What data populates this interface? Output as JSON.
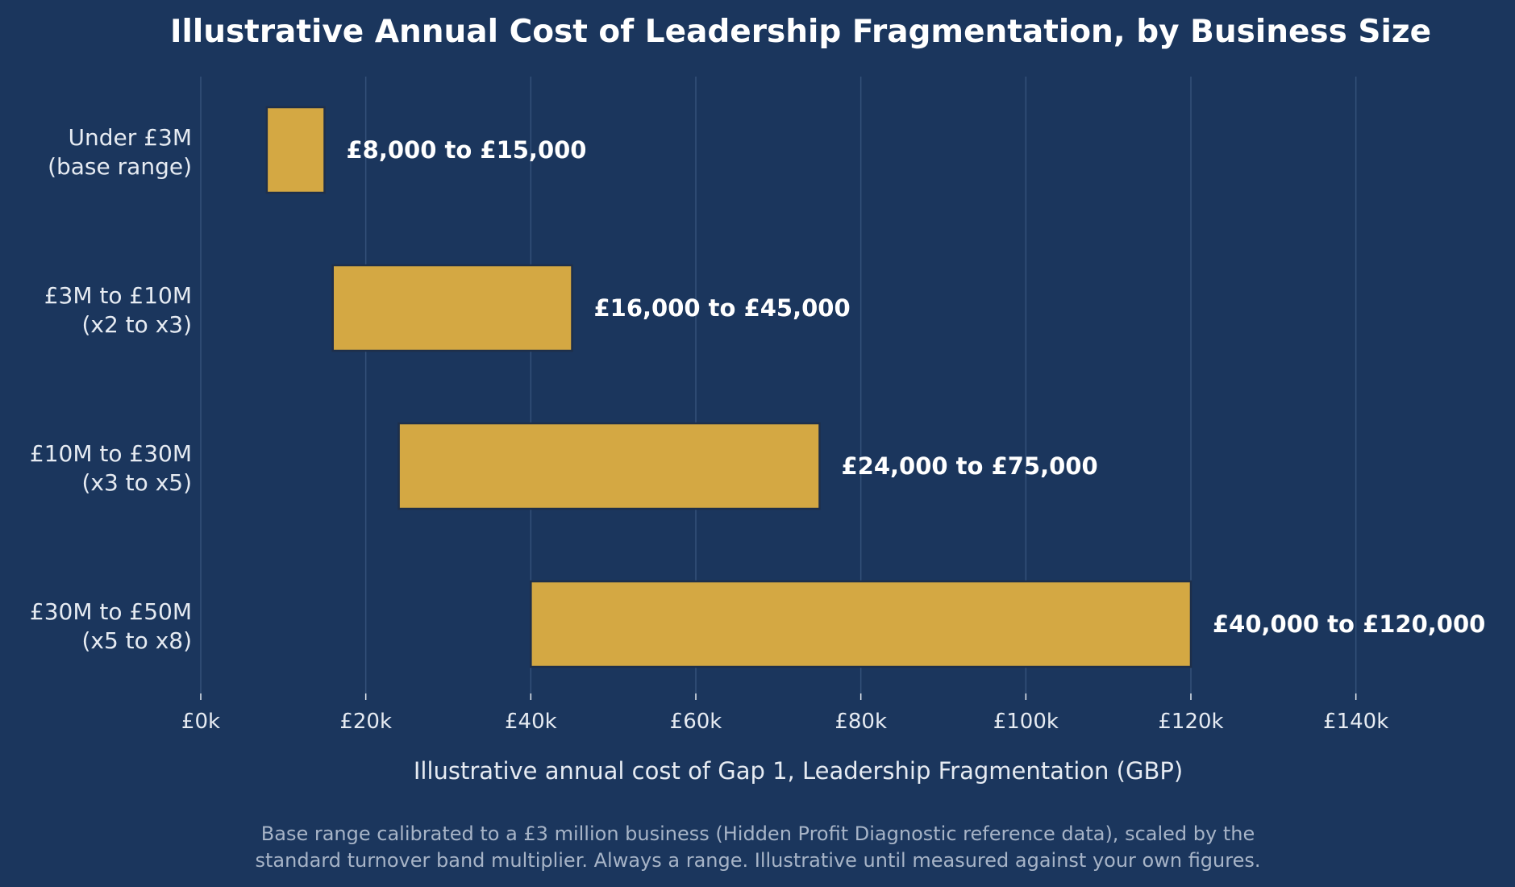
{
  "chart_data": {
    "type": "bar",
    "orientation": "horizontal",
    "title": "Illustrative Annual Cost of Leadership Fragmentation, by Business Size",
    "xlabel": "Illustrative annual cost of Gap 1, Leadership Fragmentation (GBP)",
    "ylabel": "",
    "xlim": [
      0,
      150000
    ],
    "x_ticks": [
      {
        "value": 0,
        "label": "£0k"
      },
      {
        "value": 20000,
        "label": "£20k"
      },
      {
        "value": 40000,
        "label": "£40k"
      },
      {
        "value": 60000,
        "label": "£60k"
      },
      {
        "value": 80000,
        "label": "£80k"
      },
      {
        "value": 100000,
        "label": "£100k"
      },
      {
        "value": 120000,
        "label": "£120k"
      },
      {
        "value": 140000,
        "label": "£140k"
      }
    ],
    "grid": "vertical",
    "categories": [
      {
        "line1": "Under £3M",
        "line2": "(base range)"
      },
      {
        "line1": "£3M to £10M",
        "line2": "(x2 to x3)"
      },
      {
        "line1": "£10M to £30M",
        "line2": "(x3 to x5)"
      },
      {
        "line1": "£30M to £50M",
        "line2": "(x5 to x8)"
      }
    ],
    "ranges": [
      {
        "low": 8000,
        "high": 15000,
        "label": "£8,000 to £15,000"
      },
      {
        "low": 16000,
        "high": 45000,
        "label": "£16,000 to £45,000"
      },
      {
        "low": 24000,
        "high": 75000,
        "label": "£24,000 to £75,000"
      },
      {
        "low": 40000,
        "high": 120000,
        "label": "£40,000 to £120,000"
      }
    ],
    "footnote": [
      "Base range calibrated to a £3 million business (Hidden Profit Diagnostic reference data), scaled by the",
      "standard turnover band multiplier. Always a range. Illustrative until measured against your own figures."
    ]
  },
  "colors": {
    "background": "#1b365d",
    "bar_fill": "#d4a843",
    "bar_edge": "#1e2f4a",
    "grid": "#34517a",
    "text": "#e6ebf2",
    "footnote": "#a7b4c7"
  }
}
